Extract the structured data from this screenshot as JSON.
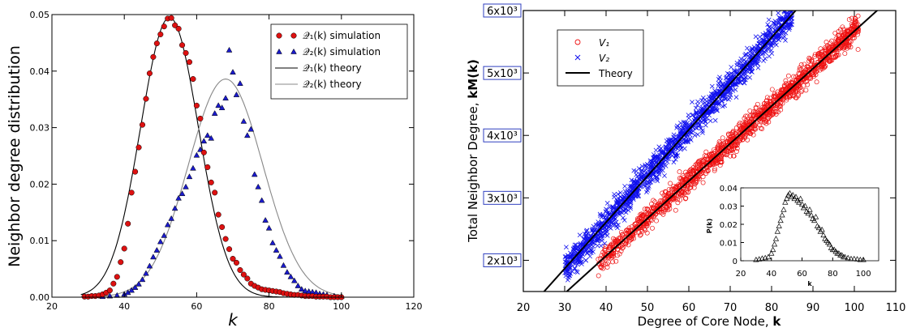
{
  "chart_data": [
    {
      "type": "scatter",
      "xlabel": "k",
      "ylabel": "Neighbor degree distribution",
      "xlim": [
        20,
        120
      ],
      "ylim": [
        0,
        0.05
      ],
      "xticks": [
        "20",
        "40",
        "60",
        "80",
        "100",
        "120"
      ],
      "yticks": [
        "0.00",
        "0.01",
        "0.02",
        "0.03",
        "0.04",
        "0.05"
      ],
      "legend_position": "top-right",
      "legend": [
        {
          "label": "𝒬₁(k) simulation",
          "marker": "circle",
          "color": "#dd1111"
        },
        {
          "label": "𝒬₂(k) simulation",
          "marker": "triangle",
          "color": "#1a1acc"
        },
        {
          "label": "𝒬₁(k) theory",
          "style": "line",
          "color": "#000000"
        },
        {
          "label": "𝒬₂(k) theory",
          "style": "line",
          "color": "#888888"
        }
      ],
      "series": [
        {
          "name": "𝒬₁(k) simulation",
          "kind": "scatter",
          "marker": "circle",
          "color": "#dd1111",
          "x": [
            29,
            30,
            31,
            32,
            33,
            34,
            35,
            36,
            37,
            38,
            39,
            40,
            41,
            42,
            43,
            44,
            45,
            46,
            47,
            48,
            49,
            50,
            51,
            52,
            53,
            54,
            55,
            56,
            57,
            58,
            59,
            60,
            61,
            62,
            63,
            64,
            65,
            66,
            67,
            68,
            69,
            70,
            71,
            72,
            73,
            74,
            75,
            76,
            77,
            78,
            79,
            80,
            81,
            82,
            83,
            84,
            85,
            86,
            87,
            88,
            89,
            90,
            91,
            92,
            93,
            94,
            95,
            96,
            97,
            98,
            99,
            100
          ],
          "y": [
            0.0001,
            0.0001,
            0.0002,
            0.0002,
            0.0003,
            0.0005,
            0.0008,
            0.0012,
            0.0024,
            0.0036,
            0.0062,
            0.0086,
            0.013,
            0.0185,
            0.0222,
            0.0265,
            0.0305,
            0.0351,
            0.0396,
            0.0425,
            0.0449,
            0.0465,
            0.0479,
            0.0493,
            0.0494,
            0.0481,
            0.0475,
            0.0446,
            0.0432,
            0.0416,
            0.0386,
            0.0339,
            0.0316,
            0.0256,
            0.023,
            0.0203,
            0.0185,
            0.0146,
            0.0124,
            0.0103,
            0.0085,
            0.0068,
            0.0061,
            0.0048,
            0.004,
            0.0033,
            0.0024,
            0.002,
            0.0017,
            0.0014,
            0.0013,
            0.0012,
            0.0011,
            0.001,
            0.0009,
            0.0007,
            0.0006,
            0.0005,
            0.0004,
            0.0004,
            0.0003,
            0.0002,
            0.0002,
            0.0002,
            0.0001,
            0.0001,
            0.0001,
            0.0001,
            0.0,
            0.0,
            0.0,
            0.0
          ]
        },
        {
          "name": "𝒬₂(k) simulation",
          "kind": "scatter",
          "marker": "triangle",
          "color": "#1a1acc",
          "x": [
            34,
            36,
            38,
            40,
            41,
            42,
            43,
            44,
            45,
            46,
            47,
            48,
            49,
            50,
            51,
            52,
            53,
            54,
            55,
            56,
            57,
            58,
            59,
            60,
            61,
            62,
            63,
            64,
            65,
            66,
            67,
            68,
            69,
            70,
            71,
            72,
            73,
            74,
            75,
            76,
            77,
            78,
            79,
            80,
            81,
            82,
            83,
            84,
            85,
            86,
            87,
            88,
            89,
            90,
            91,
            92,
            93,
            94,
            95,
            96,
            98,
            100
          ],
          "y": [
            0.0001,
            0.0002,
            0.0003,
            0.0005,
            0.0008,
            0.0012,
            0.0017,
            0.0023,
            0.0031,
            0.0042,
            0.0055,
            0.0071,
            0.0083,
            0.0098,
            0.0109,
            0.0128,
            0.0139,
            0.0157,
            0.0175,
            0.0183,
            0.0195,
            0.0213,
            0.0228,
            0.0251,
            0.0261,
            0.0276,
            0.0286,
            0.0281,
            0.0325,
            0.0339,
            0.0335,
            0.0352,
            0.0437,
            0.0398,
            0.0358,
            0.0378,
            0.0311,
            0.0286,
            0.0297,
            0.0217,
            0.0195,
            0.0171,
            0.0136,
            0.0122,
            0.0096,
            0.0083,
            0.0072,
            0.0056,
            0.0044,
            0.0036,
            0.0029,
            0.002,
            0.0014,
            0.0011,
            0.001,
            0.0009,
            0.0008,
            0.0006,
            0.0005,
            0.0004,
            0.0002,
            0.0001
          ]
        },
        {
          "name": "𝒬₁(k) theory",
          "kind": "line",
          "color": "#000000",
          "model": "gaussian",
          "mean": 52.5,
          "sd": 8.0,
          "peak": 0.0495,
          "x_range": [
            28,
            100
          ]
        },
        {
          "name": "𝒬₂(k) theory",
          "kind": "line",
          "color": "#888888",
          "model": "gaussian",
          "mean": 68.0,
          "sd": 10.3,
          "peak": 0.0386,
          "x_range": [
            28,
            100
          ]
        }
      ]
    },
    {
      "type": "scatter",
      "xlabel": "Degree of Core Node, ",
      "xlabel_bold": "k",
      "ylabel": "Total Neighbor Degree, ",
      "ylabel_bold": "kM(k)",
      "xlim": [
        20,
        110
      ],
      "ylim": [
        1500,
        6000
      ],
      "xticks": [
        "20",
        "30",
        "40",
        "50",
        "60",
        "70",
        "80",
        "90",
        "100",
        "110"
      ],
      "yticks": [
        "2x10³",
        "3x10³",
        "4x10³",
        "5x10³",
        "6x10³"
      ],
      "legend_position": "top-left",
      "legend": [
        {
          "label": "V₁",
          "marker": "circle-open",
          "color": "#ee1111"
        },
        {
          "label": "V₂",
          "marker": "x",
          "color": "#1111ee"
        },
        {
          "label": "Theory",
          "style": "line",
          "color": "#000000"
        }
      ],
      "series": [
        {
          "name": "V₁",
          "kind": "scatter-band",
          "marker": "circle-open",
          "color": "#ee1111",
          "x_range": [
            38,
            101
          ],
          "slope": 60,
          "intercept": -330,
          "spread": 95
        },
        {
          "name": "V₂",
          "kind": "scatter-band",
          "marker": "x",
          "color": "#1111ee",
          "x_range": [
            30,
            85
          ],
          "slope": 74,
          "intercept": -350,
          "spread": 110
        },
        {
          "name": "Theory (V₂)",
          "kind": "line",
          "color": "#000000",
          "x": [
            23,
            105
          ],
          "y": [
            1350,
            7420
          ]
        },
        {
          "name": "Theory (V₁)",
          "kind": "line",
          "color": "#000000",
          "x": [
            28,
            107
          ],
          "y": [
            1350,
            6090
          ]
        }
      ],
      "inset": {
        "type": "scatter",
        "xlabel": "k",
        "ylabel": "P(k)",
        "xlim": [
          20,
          110
        ],
        "ylim": [
          0,
          0.04
        ],
        "xticks": [
          "20",
          "40",
          "60",
          "80",
          "100"
        ],
        "yticks": [
          "0",
          "0.01",
          "0.02",
          "0.03",
          "0.04"
        ],
        "marker": "triangle-open",
        "x": [
          30,
          32,
          34,
          36,
          38,
          40,
          41,
          42,
          43,
          44,
          45,
          46,
          47,
          48,
          49,
          50,
          51,
          52,
          53,
          54,
          55,
          56,
          57,
          58,
          59,
          60,
          61,
          62,
          63,
          64,
          65,
          66,
          67,
          68,
          69,
          70,
          71,
          72,
          73,
          74,
          75,
          76,
          77,
          78,
          79,
          80,
          81,
          82,
          83,
          84,
          85,
          86,
          87,
          88,
          90,
          92,
          94,
          96,
          98,
          100
        ],
        "y": [
          0.0005,
          0.0008,
          0.0012,
          0.0015,
          0.002,
          0.004,
          0.006,
          0.009,
          0.012,
          0.016,
          0.019,
          0.022,
          0.025,
          0.028,
          0.032,
          0.034,
          0.036,
          0.037,
          0.035,
          0.036,
          0.034,
          0.035,
          0.033,
          0.032,
          0.034,
          0.031,
          0.029,
          0.03,
          0.027,
          0.026,
          0.028,
          0.025,
          0.023,
          0.022,
          0.024,
          0.019,
          0.018,
          0.016,
          0.017,
          0.014,
          0.012,
          0.011,
          0.01,
          0.009,
          0.007,
          0.006,
          0.006,
          0.005,
          0.004,
          0.004,
          0.003,
          0.003,
          0.002,
          0.002,
          0.0015,
          0.001,
          0.001,
          0.0008,
          0.0005,
          0.0005
        ]
      }
    }
  ]
}
